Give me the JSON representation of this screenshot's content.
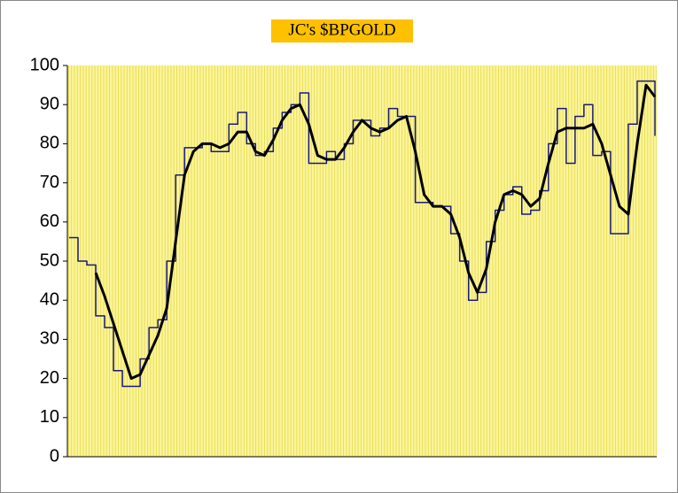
{
  "chart_data": {
    "type": "line",
    "title": "JC's $BPGOLD",
    "categories": [
      null,
      null,
      null,
      null,
      null,
      null,
      null,
      null,
      null,
      null,
      null,
      null,
      null,
      null,
      null,
      null,
      null,
      null,
      null,
      null,
      null,
      null,
      null,
      null,
      null,
      null,
      null,
      null,
      null,
      null,
      null,
      null,
      null,
      null,
      null,
      null,
      null,
      null,
      null,
      null,
      null,
      null,
      null,
      null,
      null,
      null,
      null,
      null,
      null,
      null,
      null,
      null,
      null,
      null,
      null,
      null,
      null,
      null,
      null,
      null,
      null,
      null,
      null,
      null,
      null,
      null,
      null
    ],
    "series": [
      {
        "color": "#1a1a7a",
        "line_width": 1.5,
        "step": true,
        "values": [
          56,
          50,
          49,
          36,
          33,
          22,
          18,
          18,
          25,
          33,
          35,
          50,
          72,
          79,
          79,
          80,
          78,
          78,
          85,
          88,
          80,
          77,
          78,
          84,
          88,
          90,
          93,
          75,
          75,
          78,
          76,
          80,
          86,
          86,
          82,
          84,
          89,
          87,
          87,
          65,
          65,
          64,
          64,
          57,
          50,
          40,
          42,
          55,
          63,
          67,
          69,
          62,
          63,
          68,
          80,
          89,
          75,
          87,
          90,
          77,
          78,
          57,
          57,
          85,
          96,
          96,
          82
        ]
      },
      {
        "color": "#000000",
        "line_width": 3,
        "values": [
          null,
          null,
          null,
          47,
          41,
          34,
          27,
          20,
          21,
          26,
          31,
          38,
          55,
          72,
          78,
          80,
          80,
          79,
          80,
          83,
          83,
          78,
          77,
          81,
          86,
          89,
          90,
          85,
          77,
          76,
          76,
          79,
          83,
          86,
          84,
          83,
          84,
          86,
          87,
          78,
          67,
          64,
          64,
          62,
          56,
          47,
          42,
          48,
          60,
          67,
          68,
          67,
          64,
          66,
          75,
          83,
          84,
          84,
          84,
          85,
          80,
          72,
          64,
          62,
          80,
          95,
          92
        ]
      }
    ],
    "ylim": [
      0,
      100
    ],
    "yticks": [
      0,
      10,
      20,
      30,
      40,
      50,
      60,
      70,
      80,
      90,
      100
    ],
    "grid": true,
    "plot_background": "#fbf59a",
    "grid_color": "#e6d84a",
    "title_background": "#ffc000"
  }
}
